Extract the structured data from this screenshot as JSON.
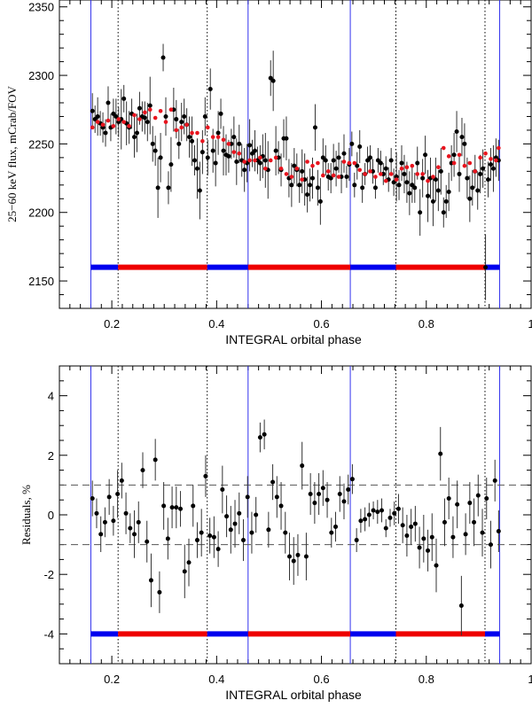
{
  "chart_data": [
    {
      "type": "scatter",
      "id": "flux",
      "xlabel": "INTEGRAL orbital phase",
      "ylabel": "25−60 keV flux, mCrab/FOV",
      "xlim": [
        0.1,
        1.0
      ],
      "ylim": [
        2130,
        2355
      ],
      "xticks": [
        0.2,
        0.4,
        0.6,
        0.8,
        1.0
      ],
      "xtick_labels": [
        "0.2",
        "0.4",
        "0.6",
        "0.8",
        "1"
      ],
      "yticks": [
        2150,
        2200,
        2250,
        2300,
        2350
      ],
      "ytick_labels": [
        "2150",
        "2200",
        "2250",
        "2300",
        "2350"
      ],
      "vlines_solid": [
        0.16,
        0.46,
        0.655,
        0.94
      ],
      "vlines_dotted": [
        0.212,
        0.382,
        0.742,
        0.912
      ],
      "phase_bar_level": 2160,
      "phase_segments": [
        {
          "x0": 0.16,
          "x1": 0.212,
          "color": "blue"
        },
        {
          "x0": 0.212,
          "x1": 0.382,
          "color": "red"
        },
        {
          "x0": 0.382,
          "x1": 0.46,
          "color": "blue"
        },
        {
          "x0": 0.46,
          "x1": 0.655,
          "color": "red"
        },
        {
          "x0": 0.655,
          "x1": 0.742,
          "color": "blue"
        },
        {
          "x0": 0.742,
          "x1": 0.912,
          "color": "red"
        },
        {
          "x0": 0.912,
          "x1": 0.94,
          "color": "blue"
        }
      ],
      "series": [
        {
          "name": "data",
          "color": "#000000",
          "x": [
            0.163,
            0.168,
            0.173,
            0.178,
            0.183,
            0.188,
            0.193,
            0.198,
            0.203,
            0.208,
            0.213,
            0.218,
            0.223,
            0.228,
            0.233,
            0.238,
            0.243,
            0.248,
            0.253,
            0.258,
            0.263,
            0.268,
            0.273,
            0.278,
            0.283,
            0.288,
            0.293,
            0.298,
            0.303,
            0.308,
            0.313,
            0.318,
            0.323,
            0.328,
            0.333,
            0.338,
            0.343,
            0.348,
            0.353,
            0.358,
            0.363,
            0.368,
            0.373,
            0.378,
            0.383,
            0.388,
            0.393,
            0.398,
            0.403,
            0.408,
            0.413,
            0.418,
            0.423,
            0.428,
            0.433,
            0.438,
            0.443,
            0.448,
            0.453,
            0.458,
            0.463,
            0.468,
            0.473,
            0.478,
            0.483,
            0.488,
            0.493,
            0.498,
            0.503,
            0.508,
            0.513,
            0.518,
            0.523,
            0.528,
            0.533,
            0.538,
            0.543,
            0.548,
            0.553,
            0.558,
            0.563,
            0.568,
            0.573,
            0.578,
            0.583,
            0.588,
            0.593,
            0.598,
            0.603,
            0.608,
            0.613,
            0.618,
            0.623,
            0.628,
            0.633,
            0.638,
            0.643,
            0.648,
            0.653,
            0.658,
            0.663,
            0.668,
            0.673,
            0.678,
            0.683,
            0.688,
            0.693,
            0.698,
            0.703,
            0.708,
            0.713,
            0.718,
            0.723,
            0.728,
            0.733,
            0.738,
            0.743,
            0.748,
            0.753,
            0.758,
            0.763,
            0.768,
            0.773,
            0.778,
            0.783,
            0.788,
            0.793,
            0.798,
            0.803,
            0.808,
            0.813,
            0.818,
            0.823,
            0.828,
            0.833,
            0.838,
            0.843,
            0.848,
            0.853,
            0.858,
            0.863,
            0.868,
            0.873,
            0.878,
            0.883,
            0.888,
            0.893,
            0.898,
            0.903,
            0.908,
            0.913,
            0.918,
            0.923,
            0.928,
            0.933,
            0.938
          ],
          "y": [
            2274,
            2268,
            2270,
            2265,
            2262,
            2258,
            2280,
            2262,
            2272,
            2270,
            2266,
            2268,
            2283,
            2265,
            2262,
            2272,
            2255,
            2258,
            2276,
            2270,
            2269,
            2266,
            2278,
            2250,
            2245,
            2218,
            2240,
            2313,
            2270,
            2218,
            2235,
            2275,
            2268,
            2250,
            2266,
            2270,
            2264,
            2255,
            2252,
            2238,
            2232,
            2216,
            2244,
            2270,
            2240,
            2290,
            2245,
            2236,
            2258,
            2272,
            2245,
            2242,
            2241,
            2250,
            2255,
            2237,
            2250,
            2238,
            2231,
            2236,
            2249,
            2243,
            2245,
            2238,
            2236,
            2241,
            2238,
            2231,
            2298,
            2296,
            2245,
            2240,
            2231,
            2254,
            2254,
            2225,
            2220,
            2234,
            2231,
            2220,
            2230,
            2224,
            2213,
            2220,
            2225,
            2262,
            2218,
            2208,
            2240,
            2238,
            2226,
            2225,
            2238,
            2232,
            2240,
            2226,
            2243,
            2226,
            2235,
            2250,
            2220,
            2234,
            2248,
            2218,
            2228,
            2238,
            2240,
            2230,
            2218,
            2238,
            2236,
            2228,
            2232,
            2224,
            2238,
            2222,
            2226,
            2220,
            2236,
            2228,
            2222,
            2214,
            2220,
            2218,
            2236,
            2200,
            2225,
            2242,
            2212,
            2225,
            2208,
            2224,
            2216,
            2230,
            2200,
            2208,
            2215,
            2236,
            2242,
            2259,
            2228,
            2255,
            2250,
            2225,
            2210,
            2218,
            2230,
            2216,
            2228,
            2232,
            2160,
            2224,
            2235,
            2232,
            2240,
            2238
          ]
        },
        {
          "name": "model",
          "color": "#e8141e",
          "x": [
            0.163,
            0.173,
            0.183,
            0.193,
            0.203,
            0.213,
            0.223,
            0.233,
            0.243,
            0.253,
            0.263,
            0.273,
            0.283,
            0.293,
            0.303,
            0.313,
            0.323,
            0.333,
            0.343,
            0.353,
            0.363,
            0.373,
            0.383,
            0.393,
            0.403,
            0.413,
            0.423,
            0.433,
            0.443,
            0.453,
            0.463,
            0.473,
            0.483,
            0.493,
            0.503,
            0.513,
            0.523,
            0.533,
            0.543,
            0.553,
            0.563,
            0.573,
            0.583,
            0.593,
            0.603,
            0.613,
            0.623,
            0.633,
            0.643,
            0.653,
            0.663,
            0.673,
            0.683,
            0.693,
            0.703,
            0.713,
            0.723,
            0.733,
            0.743,
            0.753,
            0.763,
            0.773,
            0.783,
            0.793,
            0.803,
            0.813,
            0.823,
            0.833,
            0.843,
            0.853,
            0.863,
            0.873,
            0.883,
            0.893,
            0.903,
            0.913,
            0.923,
            0.933,
            0.938
          ],
          "y": [
            2262,
            2266,
            2264,
            2267,
            2263,
            2268,
            2266,
            2263,
            2271,
            2268,
            2273,
            2275,
            2269,
            2274,
            2266,
            2275,
            2260,
            2262,
            2264,
            2258,
            2258,
            2252,
            2262,
            2255,
            2255,
            2253,
            2250,
            2244,
            2243,
            2237,
            2238,
            2238,
            2240,
            2232,
            2238,
            2240,
            2232,
            2228,
            2226,
            2232,
            2224,
            2237,
            2234,
            2236,
            2227,
            2230,
            2227,
            2226,
            2237,
            2236,
            2236,
            2231,
            2228,
            2230,
            2226,
            2228,
            2223,
            2228,
            2224,
            2232,
            2233,
            2234,
            2228,
            2228,
            2223,
            2226,
            2233,
            2247,
            2241,
            2236,
            2242,
            2234,
            2236,
            2230,
            2240,
            2243,
            2239,
            2238,
            2247
          ]
        }
      ],
      "error_half_widths": [
        13,
        10,
        14,
        9,
        11,
        10,
        12,
        10,
        11,
        13,
        11,
        22,
        10,
        16,
        12,
        11,
        15,
        14,
        12,
        11,
        12,
        14,
        21,
        13,
        11,
        22,
        18,
        10,
        14,
        12,
        20,
        16,
        14,
        11,
        14,
        13,
        12,
        15,
        18,
        11,
        22,
        21,
        16,
        14,
        13,
        15,
        16,
        17,
        16,
        11,
        18,
        15,
        12,
        11,
        15,
        17,
        14,
        12,
        16,
        14,
        19,
        10,
        15,
        10,
        13,
        16,
        20,
        21,
        13,
        22,
        18,
        12,
        12,
        14,
        16,
        14,
        16,
        13,
        12,
        13,
        16,
        19,
        13,
        12,
        15,
        17,
        13,
        17,
        14,
        11,
        10,
        11,
        12,
        13,
        11,
        12,
        14,
        8,
        12,
        9,
        9,
        10,
        12,
        11,
        8,
        10,
        9,
        9,
        8,
        9,
        9,
        8,
        9,
        9,
        9,
        10,
        18,
        11,
        13,
        14,
        15,
        16,
        13,
        11,
        12,
        17,
        14,
        14,
        19,
        15,
        18,
        16,
        15,
        17,
        11,
        12,
        14,
        13,
        16,
        15,
        13,
        14,
        15,
        15,
        17,
        13,
        12,
        14,
        14,
        14,
        24,
        13,
        12,
        17,
        14,
        15
      ]
    },
    {
      "type": "scatter",
      "id": "residuals",
      "xlabel": "INTEGRAL orbital phase",
      "ylabel": "Residuals, %",
      "xlim": [
        0.1,
        1.0
      ],
      "ylim": [
        -5.0,
        5.0
      ],
      "xticks": [
        0.2,
        0.4,
        0.6,
        0.8,
        1.0
      ],
      "xtick_labels": [
        "0.2",
        "0.4",
        "0.6",
        "0.8",
        "1"
      ],
      "yticks": [
        -4,
        -2,
        0,
        2,
        4
      ],
      "ytick_labels": [
        "-4",
        "-2",
        "0",
        "2",
        "4"
      ],
      "hlines_dashed": [
        1.0,
        -1.0
      ],
      "vlines_solid": [
        0.16,
        0.46,
        0.655,
        0.94
      ],
      "vlines_dotted": [
        0.212,
        0.382,
        0.742,
        0.912
      ],
      "phase_bar_level": -4.0,
      "phase_segments": [
        {
          "x0": 0.16,
          "x1": 0.212,
          "color": "blue"
        },
        {
          "x0": 0.212,
          "x1": 0.382,
          "color": "red"
        },
        {
          "x0": 0.382,
          "x1": 0.46,
          "color": "blue"
        },
        {
          "x0": 0.46,
          "x1": 0.655,
          "color": "red"
        },
        {
          "x0": 0.655,
          "x1": 0.742,
          "color": "blue"
        },
        {
          "x0": 0.742,
          "x1": 0.912,
          "color": "red"
        },
        {
          "x0": 0.912,
          "x1": 0.94,
          "color": "blue"
        }
      ],
      "series": [
        {
          "name": "residuals",
          "color": "#000000",
          "x": [
            0.163,
            0.171,
            0.179,
            0.187,
            0.195,
            0.203,
            0.211,
            0.219,
            0.227,
            0.235,
            0.243,
            0.251,
            0.259,
            0.267,
            0.275,
            0.283,
            0.291,
            0.299,
            0.307,
            0.315,
            0.323,
            0.331,
            0.339,
            0.347,
            0.355,
            0.363,
            0.371,
            0.379,
            0.387,
            0.395,
            0.403,
            0.411,
            0.419,
            0.427,
            0.435,
            0.443,
            0.451,
            0.459,
            0.467,
            0.475,
            0.483,
            0.491,
            0.499,
            0.507,
            0.515,
            0.523,
            0.531,
            0.539,
            0.547,
            0.555,
            0.563,
            0.571,
            0.579,
            0.587,
            0.595,
            0.603,
            0.611,
            0.619,
            0.627,
            0.635,
            0.643,
            0.651,
            0.659,
            0.667,
            0.675,
            0.683,
            0.691,
            0.699,
            0.707,
            0.715,
            0.723,
            0.731,
            0.739,
            0.747,
            0.755,
            0.763,
            0.771,
            0.779,
            0.787,
            0.795,
            0.803,
            0.811,
            0.819,
            0.827,
            0.835,
            0.843,
            0.851,
            0.859,
            0.867,
            0.875,
            0.883,
            0.891,
            0.899,
            0.907,
            0.915,
            0.923,
            0.931,
            0.938
          ],
          "y": [
            0.55,
            0.05,
            -0.65,
            -0.25,
            0.6,
            -0.2,
            0.7,
            1.15,
            0.05,
            -0.45,
            -0.65,
            -0.25,
            1.5,
            -0.9,
            -2.2,
            1.85,
            -2.6,
            0.3,
            -0.8,
            0.25,
            0.25,
            0.2,
            -1.9,
            -1.6,
            0.3,
            -0.85,
            -0.6,
            1.3,
            -0.7,
            -0.75,
            -1.15,
            0.85,
            -0.05,
            -0.5,
            -0.3,
            0.05,
            -0.85,
            0.6,
            -0.6,
            0.0,
            2.6,
            2.7,
            -0.5,
            1.1,
            0.6,
            0.3,
            -0.6,
            -1.4,
            -1.55,
            -1.35,
            1.65,
            -1.4,
            0.7,
            0.4,
            0.7,
            0.9,
            0.5,
            -0.6,
            -0.4,
            0.7,
            0.45,
            0.85,
            1.2,
            -0.85,
            -0.2,
            -0.15,
            0.0,
            0.15,
            0.1,
            0.15,
            -0.45,
            -0.1,
            0.05,
            0.2,
            -0.35,
            -0.7,
            -0.4,
            -0.3,
            -1.1,
            -0.8,
            -1.2,
            -0.75,
            -1.7,
            2.05,
            -0.25,
            0.55,
            -0.75,
            0.35,
            -3.05,
            -0.65,
            0.4,
            -0.25,
            0.65,
            -0.6,
            0.55,
            -1.0,
            1.15,
            -0.55
          ]
        }
      ],
      "error_half_widths": [
        0.6,
        0.5,
        0.6,
        0.5,
        0.6,
        0.5,
        0.8,
        0.6,
        0.7,
        0.5,
        0.8,
        0.7,
        0.6,
        0.7,
        0.9,
        0.7,
        0.7,
        0.8,
        0.7,
        0.7,
        0.7,
        0.6,
        0.9,
        0.8,
        0.7,
        0.6,
        0.8,
        0.7,
        0.6,
        0.7,
        0.6,
        0.8,
        0.7,
        0.8,
        0.8,
        0.7,
        0.7,
        0.7,
        0.7,
        0.6,
        0.5,
        0.5,
        0.6,
        0.6,
        0.7,
        0.8,
        0.7,
        0.8,
        0.8,
        0.7,
        0.8,
        0.8,
        0.7,
        0.7,
        0.7,
        0.6,
        0.6,
        0.5,
        0.5,
        0.6,
        0.6,
        0.5,
        0.5,
        0.4,
        0.4,
        0.4,
        0.4,
        0.3,
        0.4,
        0.4,
        0.3,
        0.3,
        0.4,
        0.5,
        0.6,
        0.7,
        0.6,
        0.6,
        0.7,
        0.8,
        0.7,
        0.8,
        0.9,
        0.9,
        0.8,
        0.7,
        0.7,
        0.8,
        1.0,
        0.7,
        0.7,
        0.8,
        0.7,
        0.8,
        0.7,
        0.8,
        0.7,
        0.7
      ]
    }
  ],
  "colors": {
    "phase_blue": "#0000ee",
    "phase_red": "#ee0000",
    "vline_solid": "#3333ee",
    "axes": "#000000"
  }
}
